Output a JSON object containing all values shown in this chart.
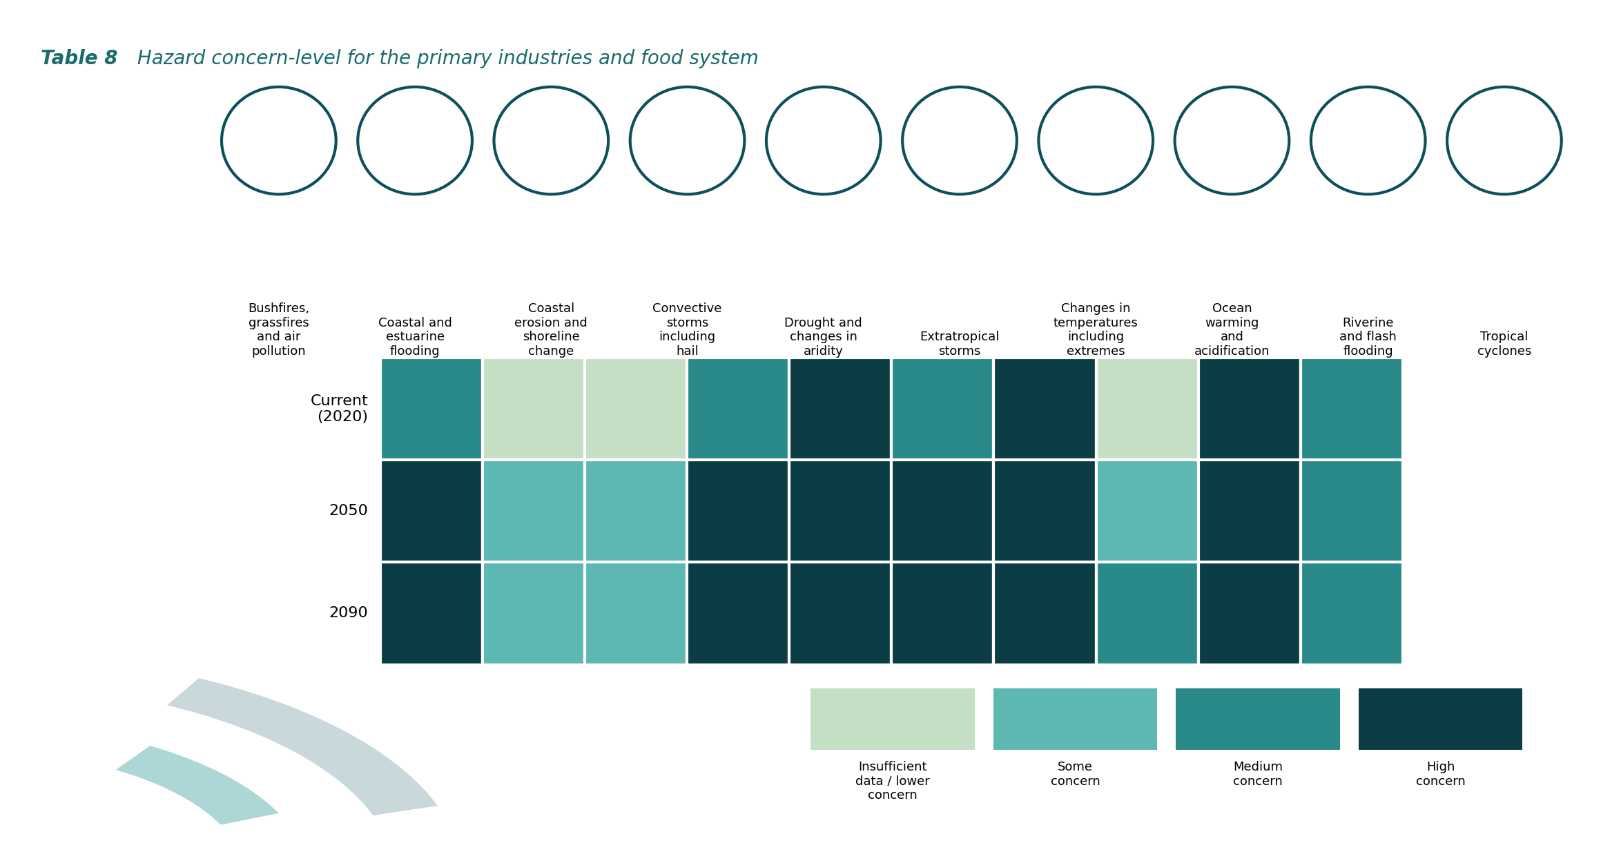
{
  "title_bold": "Table 8",
  "title_italic": " Hazard concern-level for the primary industries and food system",
  "title_color": "#1a6b6b",
  "title_fontsize": 20,
  "columns": [
    "Bushfires,\ngrassfires\nand air\npollution",
    "Coastal and\nestuarine\nflooding",
    "Coastal\nerosion and\nshoreline\nchange",
    "Convective\nstorms\nincluding\nhail",
    "Drought and\nchanges in\naridity",
    "Extratropical\nstorms",
    "Changes in\ntemperatures\nincluding\nextremes",
    "Ocean\nwarming\nand\nacidification",
    "Riverine\nand flash\nflooding",
    "Tropical\ncyclones"
  ],
  "rows": [
    "Current\n(2020)",
    "2050",
    "2090"
  ],
  "colors": {
    "insufficient": "#c5dfc5",
    "some": "#5cb8b0",
    "medium": "#2a8a8a",
    "high": "#0d3d44"
  },
  "cell_data": [
    [
      "medium",
      "insufficient",
      "insufficient",
      "medium",
      "high",
      "medium",
      "high",
      "insufficient",
      "high",
      "medium"
    ],
    [
      "high",
      "some",
      "some",
      "high",
      "high",
      "high",
      "high",
      "some",
      "high",
      "medium"
    ],
    [
      "high",
      "some",
      "some",
      "high",
      "high",
      "high",
      "high",
      "medium",
      "high",
      "medium"
    ]
  ],
  "legend_labels": [
    "Insufficient\ndata / lower\nconcern",
    "Some\nconcern",
    "Medium\nconcern",
    "High\nconcern"
  ],
  "legend_keys": [
    "insufficient",
    "some",
    "medium",
    "high"
  ],
  "background_color": "#ffffff",
  "grid_color": "#ffffff",
  "teal_dark": "#0d4f5a",
  "row_label_fontsize": 16,
  "col_label_fontsize": 13,
  "legend_fontsize": 13
}
